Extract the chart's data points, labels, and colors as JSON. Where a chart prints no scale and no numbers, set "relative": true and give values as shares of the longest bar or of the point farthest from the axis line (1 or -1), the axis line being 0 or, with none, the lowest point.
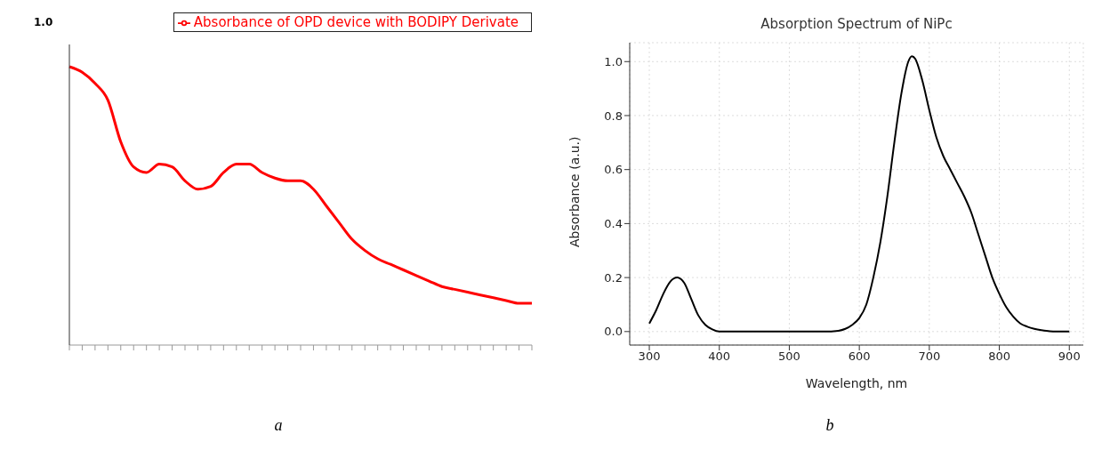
{
  "chart_data": [
    {
      "type": "line",
      "relative": true,
      "legend": "top right",
      "grid": false,
      "marker": "none",
      "line_style": "solid",
      "annotations": [
        "1.0",
        "a"
      ],
      "categories": [
        null,
        null,
        null,
        null,
        null,
        null,
        null,
        null,
        null,
        null,
        null,
        null,
        null,
        null,
        null,
        null,
        null,
        null,
        null,
        null,
        null,
        null,
        null,
        null,
        null,
        null,
        null,
        null,
        null,
        null,
        null,
        null,
        null,
        null,
        null,
        null,
        null
      ],
      "series": [
        {
          "name": "Absorbance of OPD device with BODIPY Derivate",
          "color": "#ff0000",
          "values": [
            1.0,
            0.98,
            0.94,
            0.88,
            0.73,
            0.64,
            0.62,
            0.65,
            0.64,
            0.59,
            0.56,
            0.57,
            0.62,
            0.65,
            0.65,
            0.62,
            0.6,
            0.59,
            0.59,
            0.56,
            0.5,
            0.44,
            0.38,
            0.34,
            0.31,
            0.29,
            0.27,
            0.25,
            0.23,
            0.21,
            0.2,
            0.19,
            0.18,
            0.17,
            0.16,
            0.15,
            0.15
          ]
        }
      ]
    },
    {
      "type": "line",
      "title": "Absorption Spectrum of NiPc",
      "xlabel": "Wavelength, nm",
      "ylabel": "Absorbance (a.u.)",
      "grid": true,
      "legend": false,
      "marker": "none",
      "line_style": "solid",
      "annotations": [
        "b"
      ],
      "x": [
        300,
        310,
        320,
        330,
        340,
        350,
        360,
        370,
        380,
        390,
        400,
        450,
        500,
        550,
        570,
        580,
        590,
        600,
        610,
        620,
        630,
        640,
        650,
        660,
        670,
        675,
        680,
        690,
        700,
        710,
        720,
        730,
        740,
        750,
        760,
        770,
        780,
        790,
        800,
        810,
        820,
        830,
        840,
        850,
        860,
        870,
        880,
        900
      ],
      "xlim": [
        272,
        920
      ],
      "xticks": [
        300,
        400,
        500,
        600,
        700,
        800,
        900
      ],
      "ylim": [
        -0.05,
        1.07
      ],
      "yticks": [
        {
          "value": 0,
          "label": "0.0"
        },
        0.2,
        0.4,
        0.6,
        0.8,
        {
          "value": 1,
          "label": "1.0"
        }
      ],
      "series": [
        {
          "color": "#000000",
          "values": [
            0.03,
            0.08,
            0.14,
            0.185,
            0.2,
            0.18,
            0.12,
            0.06,
            0.025,
            0.008,
            0,
            0,
            0,
            0,
            0.003,
            0.01,
            0.025,
            0.05,
            0.1,
            0.2,
            0.33,
            0.5,
            0.7,
            0.88,
            1.0,
            1.02,
            1.01,
            0.93,
            0.82,
            0.72,
            0.65,
            0.6,
            0.55,
            0.5,
            0.44,
            0.36,
            0.28,
            0.2,
            0.14,
            0.09,
            0.055,
            0.03,
            0.018,
            0.01,
            0.005,
            0.002,
            0,
            0
          ]
        }
      ]
    }
  ]
}
